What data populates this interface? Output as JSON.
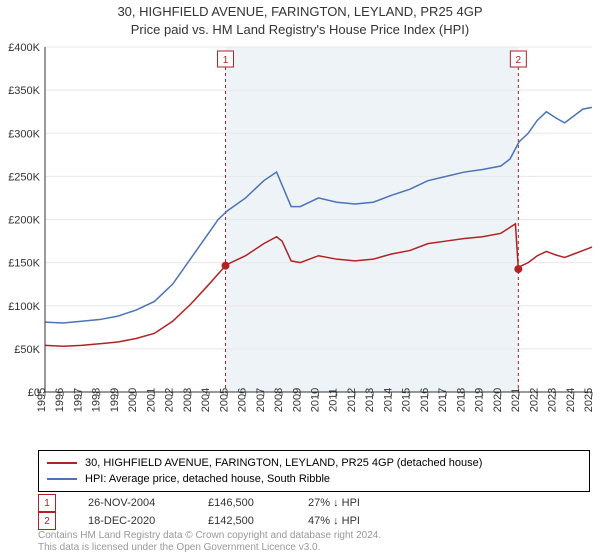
{
  "title_line1": "30, HIGHFIELD AVENUE, FARINGTON, LEYLAND, PR25 4GP",
  "title_line2": "Price paid vs. HM Land Registry's House Price Index (HPI)",
  "chart": {
    "type": "line",
    "background_color": "#ffffff",
    "grid_color": "#e8e8e8",
    "shade_color": "#eef3f8",
    "marker_line_color": "#b22222",
    "xlim": [
      1995,
      2025
    ],
    "ylim": [
      0,
      400000
    ],
    "ytick_step": 50000,
    "ytick_prefix": "£",
    "ytick_labels": [
      "£0",
      "£50K",
      "£100K",
      "£150K",
      "£200K",
      "£250K",
      "£300K",
      "£350K",
      "£400K"
    ],
    "xticks": [
      1995,
      1996,
      1997,
      1998,
      1999,
      2000,
      2001,
      2002,
      2003,
      2004,
      2005,
      2006,
      2007,
      2008,
      2009,
      2010,
      2011,
      2012,
      2013,
      2014,
      2015,
      2016,
      2017,
      2018,
      2019,
      2020,
      2021,
      2022,
      2023,
      2024,
      2025
    ],
    "shade_start": 2004.9,
    "shade_end": 2020.96,
    "series": [
      {
        "name": "hpi",
        "label": "HPI: Average price, detached house, South Ribble",
        "color": "#4a73b8",
        "line_width": 1.5,
        "data": [
          [
            1995,
            81000
          ],
          [
            1996,
            80000
          ],
          [
            1997,
            82000
          ],
          [
            1998,
            84000
          ],
          [
            1999,
            88000
          ],
          [
            2000,
            95000
          ],
          [
            2001,
            105000
          ],
          [
            2002,
            125000
          ],
          [
            2003,
            155000
          ],
          [
            2004,
            185000
          ],
          [
            2004.5,
            200000
          ],
          [
            2005,
            210000
          ],
          [
            2006,
            225000
          ],
          [
            2007,
            245000
          ],
          [
            2007.7,
            255000
          ],
          [
            2008,
            240000
          ],
          [
            2008.5,
            215000
          ],
          [
            2009,
            215000
          ],
          [
            2010,
            225000
          ],
          [
            2011,
            220000
          ],
          [
            2012,
            218000
          ],
          [
            2013,
            220000
          ],
          [
            2014,
            228000
          ],
          [
            2015,
            235000
          ],
          [
            2016,
            245000
          ],
          [
            2017,
            250000
          ],
          [
            2018,
            255000
          ],
          [
            2019,
            258000
          ],
          [
            2020,
            262000
          ],
          [
            2020.5,
            270000
          ],
          [
            2021,
            290000
          ],
          [
            2021.5,
            300000
          ],
          [
            2022,
            315000
          ],
          [
            2022.5,
            325000
          ],
          [
            2023,
            318000
          ],
          [
            2023.5,
            312000
          ],
          [
            2024,
            320000
          ],
          [
            2024.5,
            328000
          ],
          [
            2025,
            330000
          ]
        ]
      },
      {
        "name": "price_paid",
        "label": "30, HIGHFIELD AVENUE, FARINGTON, LEYLAND, PR25 4GP (detached house)",
        "color": "#b22222",
        "line_width": 1.5,
        "data": [
          [
            1995,
            54000
          ],
          [
            1996,
            53000
          ],
          [
            1997,
            54000
          ],
          [
            1998,
            56000
          ],
          [
            1999,
            58000
          ],
          [
            2000,
            62000
          ],
          [
            2001,
            68000
          ],
          [
            2002,
            82000
          ],
          [
            2003,
            102000
          ],
          [
            2004,
            125000
          ],
          [
            2004.9,
            146500
          ],
          [
            2005,
            148000
          ],
          [
            2006,
            158000
          ],
          [
            2007,
            172000
          ],
          [
            2007.7,
            180000
          ],
          [
            2008,
            175000
          ],
          [
            2008.5,
            152000
          ],
          [
            2009,
            150000
          ],
          [
            2010,
            158000
          ],
          [
            2011,
            154000
          ],
          [
            2012,
            152000
          ],
          [
            2013,
            154000
          ],
          [
            2014,
            160000
          ],
          [
            2015,
            164000
          ],
          [
            2016,
            172000
          ],
          [
            2017,
            175000
          ],
          [
            2018,
            178000
          ],
          [
            2019,
            180000
          ],
          [
            2020,
            184000
          ],
          [
            2020.8,
            195000
          ],
          [
            2020.96,
            142500
          ],
          [
            2021,
            145000
          ],
          [
            2021.5,
            150000
          ],
          [
            2022,
            158000
          ],
          [
            2022.5,
            163000
          ],
          [
            2023,
            159000
          ],
          [
            2023.5,
            156000
          ],
          [
            2024,
            160000
          ],
          [
            2024.5,
            164000
          ],
          [
            2025,
            168000
          ]
        ]
      }
    ],
    "markers": [
      {
        "num": "1",
        "x": 2004.9,
        "y": 146500
      },
      {
        "num": "2",
        "x": 2020.96,
        "y": 142500
      }
    ]
  },
  "legend": {
    "items": [
      {
        "color": "#b22222",
        "label": "30, HIGHFIELD AVENUE, FARINGTON, LEYLAND, PR25 4GP (detached house)"
      },
      {
        "color": "#4a73b8",
        "label": "HPI: Average price, detached house, South Ribble"
      }
    ]
  },
  "transactions": [
    {
      "num": "1",
      "date": "26-NOV-2004",
      "price": "£146,500",
      "hpi": "27% ↓ HPI"
    },
    {
      "num": "2",
      "date": "18-DEC-2020",
      "price": "£142,500",
      "hpi": "47% ↓ HPI"
    }
  ],
  "footer_line1": "Contains HM Land Registry data © Crown copyright and database right 2024.",
  "footer_line2": "This data is licensed under the Open Government Licence v3.0."
}
